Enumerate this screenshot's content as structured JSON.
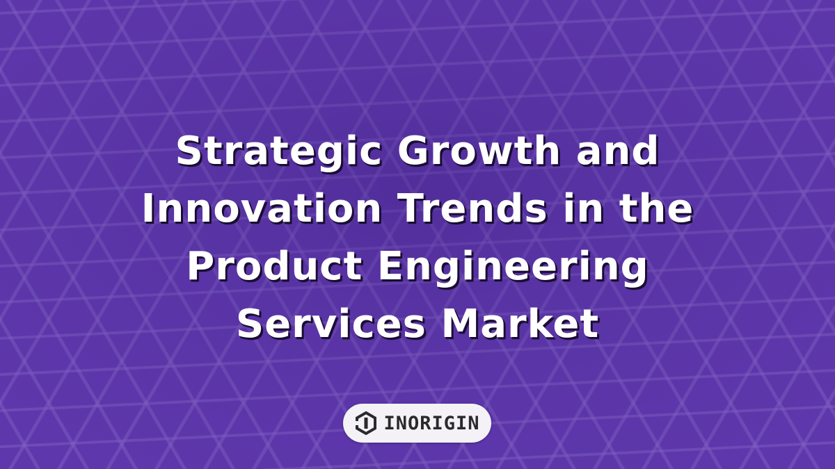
{
  "banner": {
    "title_lines": [
      "Strategic Growth and",
      "Innovation Trends in the",
      "Product Engineering",
      "Services Market"
    ],
    "logo": {
      "text": "INORIGIN"
    }
  }
}
